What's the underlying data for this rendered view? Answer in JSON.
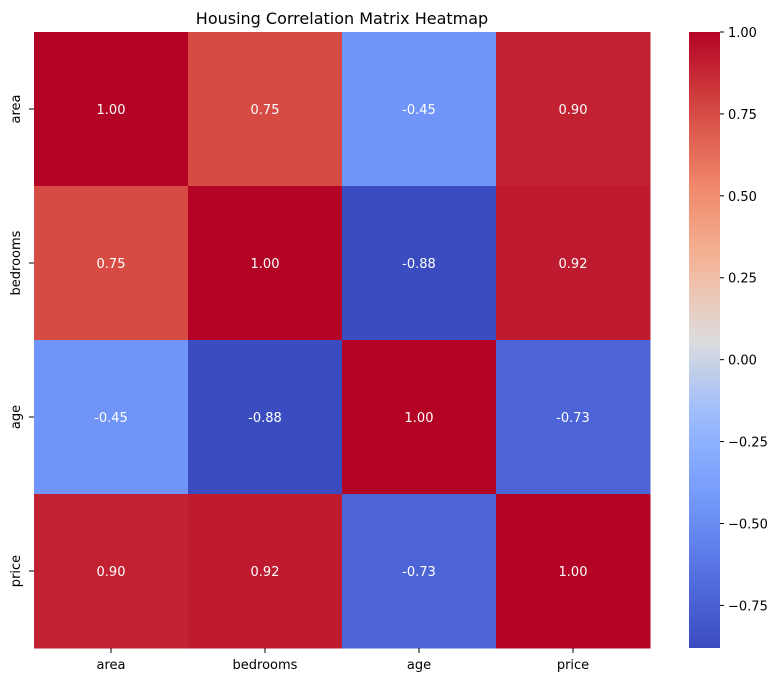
{
  "chart_data": {
    "type": "heatmap",
    "title": "Housing Correlation Matrix Heatmap",
    "xlabel": "",
    "ylabel": "",
    "x_categories": [
      "area",
      "bedrooms",
      "age",
      "price"
    ],
    "y_categories": [
      "area",
      "bedrooms",
      "age",
      "price"
    ],
    "values": [
      [
        1.0,
        0.75,
        -0.45,
        0.9
      ],
      [
        0.75,
        1.0,
        -0.88,
        0.92
      ],
      [
        -0.45,
        -0.88,
        1.0,
        -0.73
      ],
      [
        0.9,
        0.92,
        -0.73,
        1.0
      ]
    ],
    "value_format": "0.00",
    "colormap": "coolwarm",
    "color_range": [
      -0.88,
      1.0
    ],
    "colorbar": {
      "ticks": [
        1.0,
        0.75,
        0.5,
        0.25,
        0.0,
        -0.25,
        -0.5,
        -0.75
      ],
      "tick_labels": [
        "1.00",
        "0.75",
        "0.50",
        "0.25",
        "0.00",
        "−0.25",
        "−0.50",
        "−0.75"
      ]
    },
    "annotation_color": "#ffffff",
    "grid": false
  }
}
